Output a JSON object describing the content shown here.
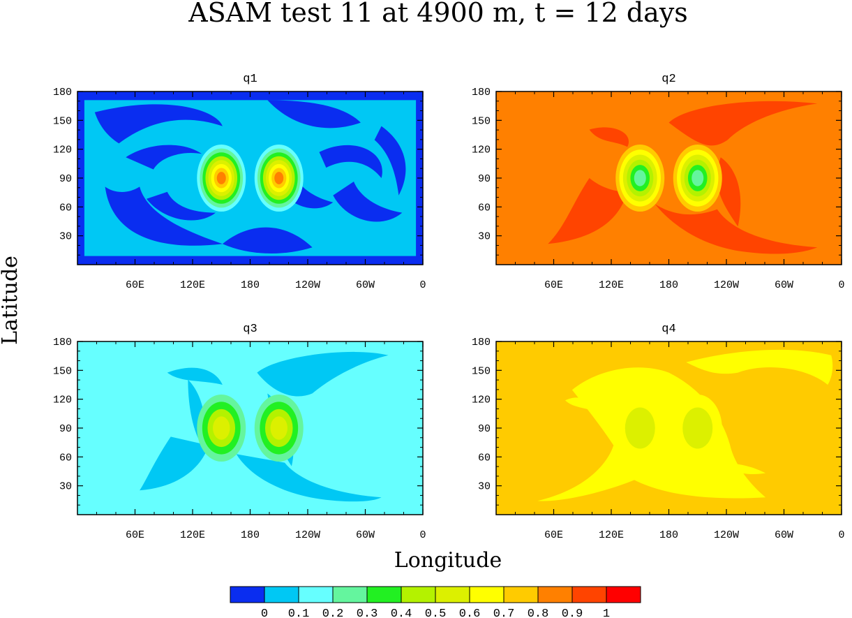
{
  "figure": {
    "title": "ASAM test 11 at 4900 m, t = 12 days",
    "ylabel": "Latitude",
    "xlabel": "Longitude"
  },
  "colors": {
    "levels": [
      "#0a2df0",
      "#00c8f4",
      "#66ffff",
      "#64f59e",
      "#22f022",
      "#b4f200",
      "#dcf000",
      "#ffff00",
      "#ffcb00",
      "#ff8000",
      "#ff4400",
      "#ff0000"
    ]
  },
  "chart_data": [
    {
      "type": "heatmap",
      "title": "q1",
      "xlabel": "",
      "ylabel": "",
      "x_ticks": [
        "60E",
        "120E",
        "180",
        "120W",
        "60W",
        "0"
      ],
      "y_ticks": [
        30,
        60,
        90,
        120,
        150,
        180
      ],
      "ylim": [
        0,
        180
      ],
      "background_level": 1,
      "features": [
        {
          "kind": "filaments",
          "level": 0
        },
        {
          "kind": "vortex",
          "center_lon": 150,
          "center_lat": 90,
          "max_value": 0.9
        },
        {
          "kind": "vortex",
          "center_lon": 210,
          "center_lat": 90,
          "max_value": 0.9
        }
      ]
    },
    {
      "type": "heatmap",
      "title": "q2",
      "xlabel": "",
      "ylabel": "",
      "x_ticks": [
        "60E",
        "120E",
        "180",
        "120W",
        "60W",
        "0"
      ],
      "y_ticks": [
        30,
        60,
        90,
        120,
        150,
        180
      ],
      "ylim": [
        0,
        180
      ],
      "background_level": 9,
      "features": [
        {
          "kind": "filaments",
          "level": 10
        },
        {
          "kind": "vortex",
          "center_lon": 150,
          "center_lat": 90,
          "min_value": 0.3
        },
        {
          "kind": "vortex",
          "center_lon": 210,
          "center_lat": 90,
          "min_value": 0.3
        }
      ]
    },
    {
      "type": "heatmap",
      "title": "q3",
      "xlabel": "",
      "ylabel": "",
      "x_ticks": [
        "60E",
        "120E",
        "180",
        "120W",
        "60W",
        "0"
      ],
      "y_ticks": [
        30,
        60,
        90,
        120,
        150,
        180
      ],
      "ylim": [
        0,
        180
      ],
      "background_level": 2,
      "features": [
        {
          "kind": "filaments",
          "level": 1
        },
        {
          "kind": "vortex",
          "center_lon": 150,
          "center_lat": 90,
          "max_value": 0.6
        },
        {
          "kind": "vortex",
          "center_lon": 210,
          "center_lat": 90,
          "max_value": 0.6
        }
      ]
    },
    {
      "type": "heatmap",
      "title": "q4",
      "xlabel": "",
      "ylabel": "",
      "x_ticks": [
        "60E",
        "120E",
        "180",
        "120W",
        "60W",
        "0"
      ],
      "y_ticks": [
        30,
        60,
        90,
        120,
        150,
        180
      ],
      "ylim": [
        0,
        180
      ],
      "background_level": 8,
      "features": [
        {
          "kind": "filaments",
          "level": 7
        },
        {
          "kind": "vortex",
          "center_lon": 150,
          "center_lat": 90,
          "min_value": 0.6
        },
        {
          "kind": "vortex",
          "center_lon": 210,
          "center_lat": 90,
          "min_value": 0.6
        }
      ]
    }
  ],
  "colorbar": {
    "tick_labels": [
      "0",
      "0.1",
      "0.2",
      "0.3",
      "0.4",
      "0.5",
      "0.6",
      "0.7",
      "0.8",
      "0.9",
      "1"
    ]
  }
}
